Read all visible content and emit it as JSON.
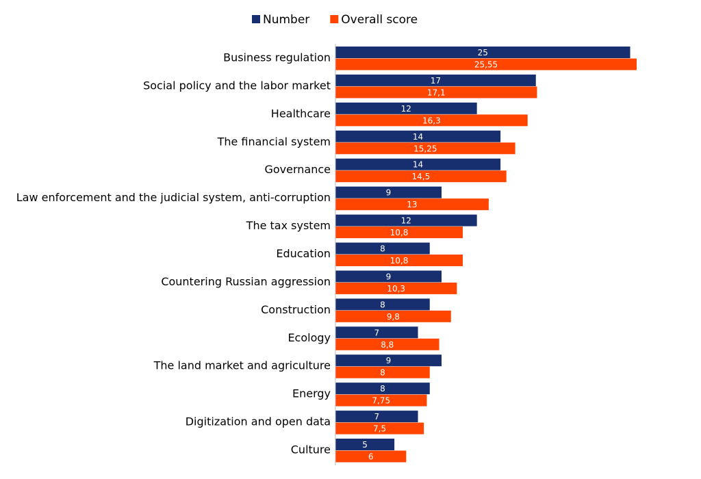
{
  "chart_data": {
    "type": "bar",
    "orientation": "horizontal",
    "categories": [
      "Business regulation",
      "Social policy and the labor market",
      "Healthcare",
      "The financial system",
      "Governance",
      "Law enforcement and the judicial system, anti-corruption",
      "The tax system",
      "Education",
      "Countering Russian aggression",
      "Construction",
      "Ecology",
      "The land market and agriculture",
      "Energy",
      "Digitization and open data",
      "Culture"
    ],
    "series": [
      {
        "name": "Number",
        "color": "#172f6e",
        "values": [
          25,
          17,
          12,
          14,
          14,
          9,
          12,
          8,
          9,
          8,
          7,
          9,
          8,
          7,
          5
        ]
      },
      {
        "name": "Overall score",
        "color": "#ff4500",
        "values": [
          25.55,
          17.1,
          16.3,
          15.25,
          14.5,
          13,
          10.8,
          10.8,
          10.3,
          9.8,
          8.8,
          8,
          7.75,
          7.5,
          6
        ],
        "value_labels": [
          "25,55",
          "17,1",
          "16,3",
          "15,25",
          "14,5",
          "13",
          "10,8",
          "10,8",
          "10,3",
          "9,8",
          "8,8",
          "8",
          "7,75",
          "7,5",
          "6"
        ]
      }
    ],
    "legend": "top"
  }
}
